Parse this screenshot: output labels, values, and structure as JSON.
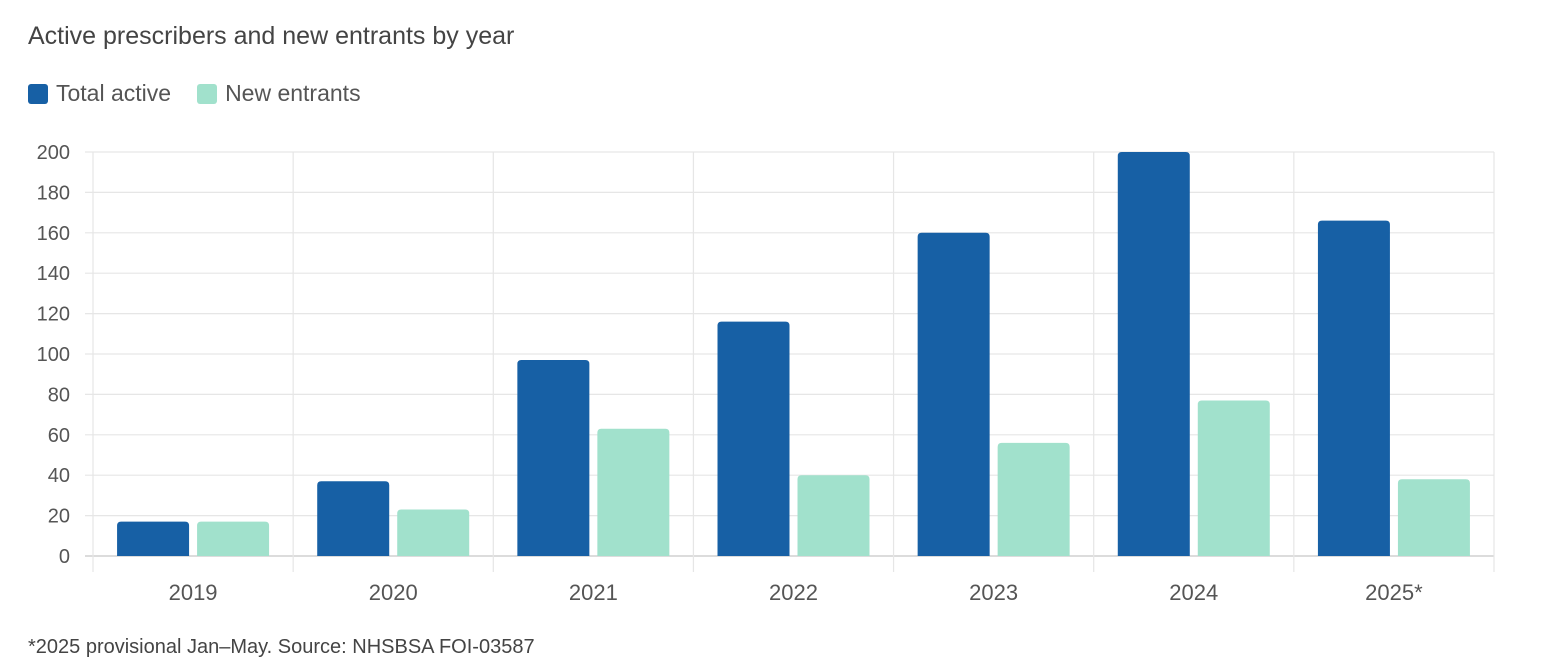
{
  "chart_data": {
    "type": "bar",
    "title": "Active prescribers and new entrants by year",
    "categories": [
      "2019",
      "2020",
      "2021",
      "2022",
      "2023",
      "2024",
      "2025*"
    ],
    "series": [
      {
        "name": "Total active",
        "color": "#1760a5",
        "values": [
          17,
          37,
          97,
          116,
          160,
          200,
          166
        ]
      },
      {
        "name": "New entrants",
        "color": "#a1e1cc",
        "values": [
          17,
          23,
          63,
          40,
          56,
          77,
          38
        ]
      }
    ],
    "ylim": [
      0,
      200
    ],
    "yticks": [
      0,
      20,
      40,
      60,
      80,
      100,
      120,
      140,
      160,
      180,
      200
    ],
    "grid": true,
    "legend": "top-left",
    "footnote": "*2025 provisional Jan–May. Source: NHSBSA FOI-03587"
  }
}
